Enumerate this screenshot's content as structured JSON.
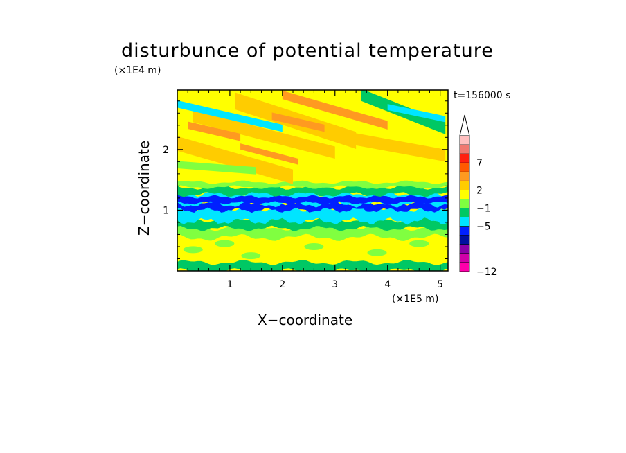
{
  "chart_data": {
    "type": "heatmap",
    "title": "disturbunce of potential temperature",
    "xlabel": "X−coordinate",
    "ylabel": "Z−coordinate",
    "x_unit": "(×1E5 m)",
    "y_unit": "(×1E4 m)",
    "time_label": "t=156000 s",
    "xlim": [
      0,
      5.15
    ],
    "ylim": [
      0,
      2.98
    ],
    "x_ticks": [
      1,
      2,
      3,
      4,
      5
    ],
    "y_ticks": [
      1,
      2
    ],
    "x_tick_labels": [
      "1",
      "2",
      "3",
      "4",
      "5"
    ],
    "y_tick_labels": [
      "1",
      "2"
    ],
    "colorbar": {
      "colors": [
        "#ff00aa",
        "#d000a8",
        "#8a00a8",
        "#0010a0",
        "#0020ff",
        "#00e5ff",
        "#00c864",
        "#80ff40",
        "#ffff00",
        "#ffcc00",
        "#ff9a20",
        "#ff5a00",
        "#ff2010",
        "#f07870",
        "#ffc0c0"
      ],
      "tick_labels": [
        "−12",
        "−5",
        "−1",
        "2",
        "7"
      ],
      "extend": "top"
    },
    "field_description": "Horizontal layered bands: mixed green/yellow near the surface, cyan and dark blue negative layer around z=1, yellow/orange tilted wave structures above z=1.5 with cyan streaks.",
    "layers": [
      {
        "z0": 0.0,
        "z1": 0.12,
        "level": 6
      },
      {
        "z0": 0.12,
        "z1": 0.55,
        "level": 8
      },
      {
        "z0": 0.55,
        "z1": 0.72,
        "level": 7
      },
      {
        "z0": 0.72,
        "z1": 0.82,
        "level": 6
      },
      {
        "z0": 0.82,
        "z1": 1.02,
        "level": 5
      },
      {
        "z0": 1.02,
        "z1": 1.12,
        "level": 4
      },
      {
        "z0": 1.12,
        "z1": 1.28,
        "level": 5
      },
      {
        "z0": 1.28,
        "z1": 1.38,
        "level": 6
      },
      {
        "z0": 1.38,
        "z1": 1.62,
        "level": 8
      },
      {
        "z0": 1.62,
        "z1": 2.98,
        "level": 8
      }
    ]
  }
}
